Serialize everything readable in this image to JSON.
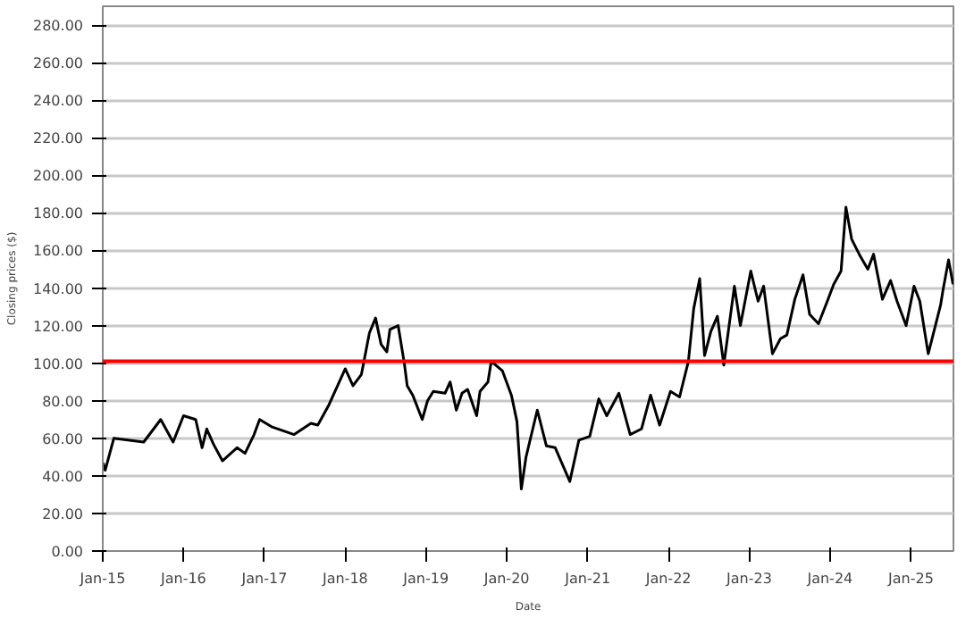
{
  "chart_data": {
    "type": "line",
    "xlabel": "Date",
    "ylabel": "Closing prices ($)",
    "grid": "y",
    "line_style": "solid",
    "xlim": [
      "2015-01-01",
      "2025-07-12"
    ],
    "xticks": [
      {
        "value": "2015-01-01",
        "label": "Jan-15"
      },
      {
        "value": "2016-01-01",
        "label": "Jan-16"
      },
      {
        "value": "2017-01-01",
        "label": "Jan-17"
      },
      {
        "value": "2018-01-01",
        "label": "Jan-18"
      },
      {
        "value": "2019-01-01",
        "label": "Jan-19"
      },
      {
        "value": "2020-01-01",
        "label": "Jan-20"
      },
      {
        "value": "2021-01-01",
        "label": "Jan-21"
      },
      {
        "value": "2022-01-01",
        "label": "Jan-22"
      },
      {
        "value": "2023-01-01",
        "label": "Jan-23"
      },
      {
        "value": "2024-01-01",
        "label": "Jan-24"
      },
      {
        "value": "2025-01-01",
        "label": "Jan-25"
      }
    ],
    "ylim": [
      0,
      290
    ],
    "yticks": [
      {
        "value": 0,
        "label": "0.00"
      },
      {
        "value": 20,
        "label": "20.00"
      },
      {
        "value": 40,
        "label": "40.00"
      },
      {
        "value": 60,
        "label": "60.00"
      },
      {
        "value": 80,
        "label": "80.00"
      },
      {
        "value": 100,
        "label": "100.00"
      },
      {
        "value": 120,
        "label": "120.00"
      },
      {
        "value": 140,
        "label": "140.00"
      },
      {
        "value": 160,
        "label": "160.00"
      },
      {
        "value": 180,
        "label": "180.00"
      },
      {
        "value": 200,
        "label": "200.00"
      },
      {
        "value": 220,
        "label": "220.00"
      },
      {
        "value": 240,
        "label": "240.00"
      },
      {
        "value": 260,
        "label": "260.00"
      },
      {
        "value": 280,
        "label": "280.00"
      }
    ],
    "ref_lines": [
      {
        "axis": "y",
        "value": 101,
        "color": "#ff0000"
      }
    ],
    "x": [
      "2015-01-02",
      "2015-01-12",
      "2015-02-20",
      "2015-07-05",
      "2015-09-20",
      "2015-11-15",
      "2016-01-01",
      "2016-02-25",
      "2016-03-25",
      "2016-04-15",
      "2016-05-15",
      "2016-06-25",
      "2016-08-30",
      "2016-10-05",
      "2016-11-15",
      "2016-12-10",
      "2017-02-05",
      "2017-05-15",
      "2017-07-30",
      "2017-08-30",
      "2017-10-20",
      "2018-01-01",
      "2018-02-05",
      "2018-03-15",
      "2018-03-25",
      "2018-04-20",
      "2018-05-18",
      "2018-06-12",
      "2018-07-08",
      "2018-07-22",
      "2018-08-28",
      "2018-09-25",
      "2018-10-08",
      "2018-11-02",
      "2018-12-15",
      "2019-01-08",
      "2019-02-03",
      "2019-03-28",
      "2019-04-20",
      "2019-05-18",
      "2019-06-13",
      "2019-07-08",
      "2019-08-18",
      "2019-09-02",
      "2019-10-08",
      "2019-10-23",
      "2019-12-12",
      "2020-01-22",
      "2020-02-16",
      "2020-03-07",
      "2020-03-28",
      "2020-05-18",
      "2020-06-28",
      "2020-08-07",
      "2020-10-12",
      "2020-11-22",
      "2021-01-10",
      "2021-02-20",
      "2021-03-28",
      "2021-05-22",
      "2021-07-12",
      "2021-09-01",
      "2021-10-12",
      "2021-11-22",
      "2022-01-10",
      "2022-02-20",
      "2022-04-01",
      "2022-04-25",
      "2022-05-22",
      "2022-06-13",
      "2022-07-12",
      "2022-08-10",
      "2022-09-08",
      "2022-10-26",
      "2022-11-22",
      "2023-01-08",
      "2023-02-10",
      "2023-03-07",
      "2023-04-16",
      "2023-05-22",
      "2023-06-20",
      "2023-07-26",
      "2023-09-01",
      "2023-10-01",
      "2023-11-10",
      "2023-12-20",
      "2024-01-18",
      "2024-02-20",
      "2024-03-13",
      "2024-04-08",
      "2024-05-12",
      "2024-06-20",
      "2024-07-16",
      "2024-08-25",
      "2024-10-01",
      "2024-10-30",
      "2024-12-10",
      "2025-01-15",
      "2025-02-10",
      "2025-03-20",
      "2025-04-15",
      "2025-05-15",
      "2025-05-26",
      "2025-06-20",
      "2025-07-10"
    ],
    "series": [
      {
        "color": "#000000",
        "values": [
          47,
          43,
          60,
          58,
          70,
          58,
          72,
          70,
          55,
          65,
          57,
          48,
          55,
          52,
          62,
          70,
          66,
          62,
          68,
          67,
          78,
          97,
          88,
          94,
          100,
          116,
          124,
          110,
          106,
          118,
          120,
          100,
          88,
          83,
          70,
          80,
          85,
          84,
          90,
          75,
          84,
          86,
          72,
          85,
          90,
          101,
          96,
          83,
          69,
          33,
          50,
          75,
          56,
          55,
          37,
          59,
          61,
          81,
          72,
          84,
          62,
          65,
          83,
          67,
          85,
          82,
          101,
          129,
          145,
          104,
          117,
          125,
          99,
          141,
          120,
          149,
          133,
          141,
          105,
          113,
          115,
          134,
          147,
          126,
          121,
          133,
          142,
          149,
          183,
          166,
          158,
          150,
          158,
          134,
          144,
          133,
          120,
          141,
          133,
          105,
          117,
          131,
          139,
          155,
          142
        ]
      }
    ]
  }
}
